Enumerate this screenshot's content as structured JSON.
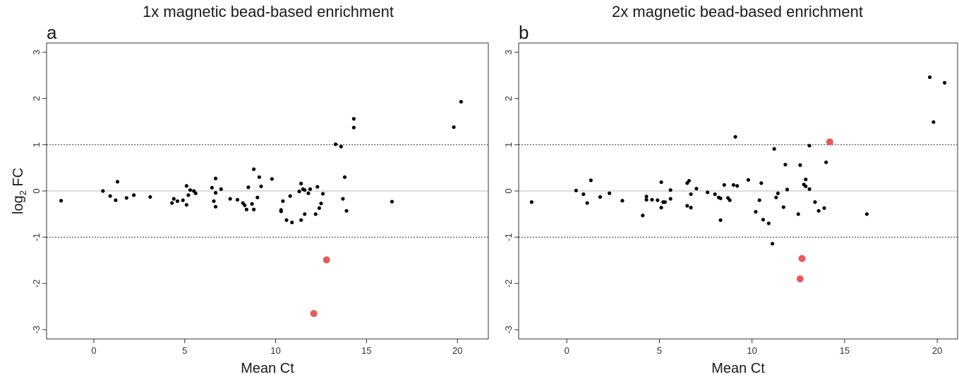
{
  "chart_data": [
    {
      "type": "scatter",
      "panel_letter": "a",
      "title": "1x magnetic bead-based enrichment",
      "xlabel": "Mean Ct",
      "ylabel_main": "log",
      "ylabel_sub": "2",
      "ylabel_tail": " FC",
      "xlim": [
        -2.6,
        21.7
      ],
      "ylim": [
        -3.2,
        3.2
      ],
      "xticks": [
        0,
        5,
        10,
        15,
        20
      ],
      "yticks": [
        -3,
        -2,
        -1,
        0,
        1,
        2,
        3
      ],
      "hlines_dashed": [
        -1,
        1
      ],
      "hline_solid": 0,
      "grid": false,
      "colors": {
        "normal": "#000000",
        "highlight": "#e85a5a",
        "zero_line": "#c8c8c8"
      },
      "series": [
        {
          "points": [
            [
              -1.8,
              -0.21
            ],
            [
              0.5,
              0.0
            ],
            [
              0.9,
              -0.11
            ],
            [
              1.2,
              -0.2
            ],
            [
              1.3,
              0.2
            ],
            [
              1.8,
              -0.15
            ],
            [
              2.2,
              -0.09
            ],
            [
              3.1,
              -0.13
            ],
            [
              4.3,
              -0.26
            ],
            [
              4.4,
              -0.17
            ],
            [
              4.6,
              -0.22
            ],
            [
              4.9,
              -0.2
            ],
            [
              5.1,
              -0.3
            ],
            [
              5.1,
              0.11
            ],
            [
              5.2,
              -0.09
            ],
            [
              5.3,
              0.02
            ],
            [
              5.5,
              0.0
            ],
            [
              5.6,
              -0.05
            ],
            [
              6.5,
              0.07
            ],
            [
              6.6,
              -0.22
            ],
            [
              6.7,
              0.27
            ],
            [
              6.7,
              -0.34
            ],
            [
              6.7,
              -0.04
            ],
            [
              7.0,
              0.04
            ],
            [
              7.5,
              -0.17
            ],
            [
              7.9,
              -0.19
            ],
            [
              8.2,
              -0.26
            ],
            [
              8.3,
              -0.31
            ],
            [
              8.4,
              -0.4
            ],
            [
              8.5,
              0.08
            ],
            [
              8.7,
              -0.28
            ],
            [
              8.8,
              -0.4
            ],
            [
              8.8,
              0.47
            ],
            [
              9.0,
              -0.14
            ],
            [
              9.1,
              0.3
            ],
            [
              9.2,
              0.1
            ],
            [
              9.8,
              0.26
            ],
            [
              10.3,
              -0.41
            ],
            [
              10.3,
              -0.44
            ],
            [
              10.4,
              -0.22
            ],
            [
              10.6,
              -0.63
            ],
            [
              10.8,
              -0.11
            ],
            [
              10.9,
              -0.68
            ],
            [
              11.3,
              -0.01
            ],
            [
              11.4,
              0.16
            ],
            [
              11.4,
              -0.63
            ],
            [
              11.5,
              0.04
            ],
            [
              11.6,
              0.02
            ],
            [
              11.6,
              -0.5
            ],
            [
              11.8,
              -0.05
            ],
            [
              11.9,
              0.04
            ],
            [
              12.2,
              -0.5
            ],
            [
              12.3,
              0.09
            ],
            [
              12.4,
              -0.37
            ],
            [
              12.5,
              -0.27
            ],
            [
              12.6,
              -0.06
            ],
            [
              13.3,
              1.01
            ],
            [
              13.6,
              0.96
            ],
            [
              13.7,
              -0.17
            ],
            [
              13.8,
              0.3
            ],
            [
              13.9,
              -0.43
            ],
            [
              14.3,
              1.56
            ],
            [
              14.3,
              1.37
            ],
            [
              16.4,
              -0.23
            ],
            [
              19.8,
              1.38
            ],
            [
              20.2,
              1.93
            ]
          ]
        },
        {
          "highlight": true,
          "points": [
            [
              12.8,
              -1.49
            ],
            [
              12.1,
              -2.65
            ]
          ]
        }
      ]
    },
    {
      "type": "scatter",
      "panel_letter": "b",
      "title": "2x magnetic bead-based enrichment",
      "xlabel": "Mean Ct",
      "xlim": [
        -2.6,
        21.1
      ],
      "ylim": [
        -3.2,
        3.2
      ],
      "xticks": [
        0,
        5,
        10,
        15,
        20
      ],
      "yticks": [
        -3,
        -2,
        -1,
        0,
        1,
        2,
        3
      ],
      "hlines_dashed": [
        -1,
        1
      ],
      "hline_solid": 0,
      "grid": false,
      "colors": {
        "normal": "#000000",
        "highlight": "#e85a5a",
        "zero_line": "#c8c8c8"
      },
      "series": [
        {
          "points": [
            [
              -1.9,
              -0.24
            ],
            [
              0.5,
              0.01
            ],
            [
              0.9,
              -0.07
            ],
            [
              1.1,
              -0.26
            ],
            [
              1.3,
              0.23
            ],
            [
              1.8,
              -0.13
            ],
            [
              2.3,
              -0.05
            ],
            [
              3.0,
              -0.21
            ],
            [
              4.1,
              -0.53
            ],
            [
              4.3,
              -0.12
            ],
            [
              4.3,
              -0.19
            ],
            [
              4.6,
              -0.19
            ],
            [
              4.9,
              -0.2
            ],
            [
              5.1,
              -0.36
            ],
            [
              5.1,
              0.19
            ],
            [
              5.2,
              -0.24
            ],
            [
              5.3,
              -0.24
            ],
            [
              5.6,
              0.02
            ],
            [
              5.6,
              -0.17
            ],
            [
              6.5,
              0.17
            ],
            [
              6.5,
              -0.32
            ],
            [
              6.6,
              0.22
            ],
            [
              6.7,
              -0.07
            ],
            [
              6.7,
              -0.36
            ],
            [
              7.0,
              0.05
            ],
            [
              7.6,
              -0.03
            ],
            [
              8.0,
              -0.07
            ],
            [
              8.2,
              -0.14
            ],
            [
              8.3,
              -0.63
            ],
            [
              8.3,
              -0.16
            ],
            [
              8.5,
              0.13
            ],
            [
              8.7,
              -0.15
            ],
            [
              8.8,
              -0.2
            ],
            [
              9.0,
              0.13
            ],
            [
              9.1,
              1.17
            ],
            [
              9.2,
              0.11
            ],
            [
              9.8,
              0.24
            ],
            [
              10.2,
              -0.45
            ],
            [
              10.4,
              -0.2
            ],
            [
              10.5,
              0.17
            ],
            [
              10.6,
              -0.62
            ],
            [
              10.9,
              -0.7
            ],
            [
              11.1,
              -1.14
            ],
            [
              11.2,
              0.91
            ],
            [
              11.3,
              -0.14
            ],
            [
              11.4,
              -0.05
            ],
            [
              11.7,
              -0.35
            ],
            [
              11.8,
              0.57
            ],
            [
              11.9,
              0.03
            ],
            [
              12.5,
              -0.5
            ],
            [
              12.6,
              0.56
            ],
            [
              12.8,
              0.14
            ],
            [
              12.9,
              0.1
            ],
            [
              12.9,
              0.25
            ],
            [
              13.1,
              0.98
            ],
            [
              13.1,
              0.04
            ],
            [
              13.4,
              -0.24
            ],
            [
              13.6,
              -0.43
            ],
            [
              13.9,
              -0.37
            ],
            [
              14.0,
              0.62
            ],
            [
              16.2,
              -0.5
            ],
            [
              19.6,
              2.46
            ],
            [
              19.8,
              1.49
            ],
            [
              20.4,
              2.34
            ]
          ]
        },
        {
          "highlight": true,
          "points": [
            [
              14.2,
              1.06
            ],
            [
              12.7,
              -1.46
            ],
            [
              12.6,
              -1.9
            ]
          ]
        }
      ]
    }
  ]
}
